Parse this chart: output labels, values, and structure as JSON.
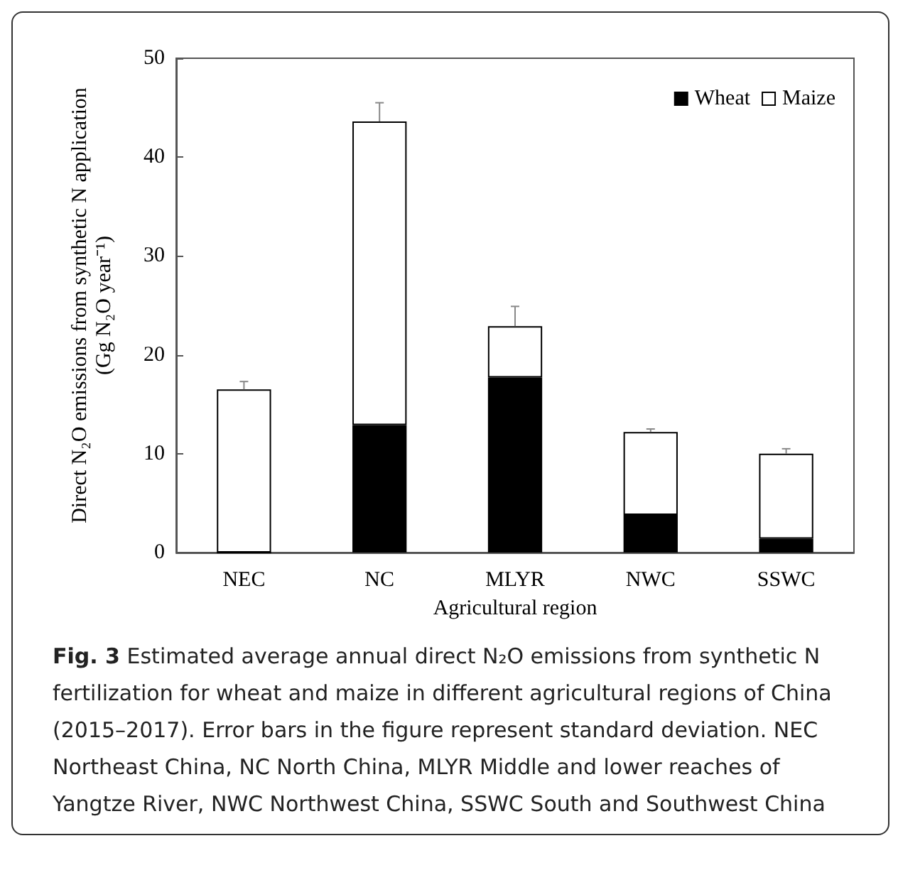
{
  "chart_data": {
    "type": "bar",
    "stacked": true,
    "categories": [
      "NEC",
      "NC",
      "MLYR",
      "NWC",
      "SSWC"
    ],
    "series": [
      {
        "name": "Wheat",
        "color": "#000000",
        "values": [
          0,
          12.9,
          17.7,
          3.8,
          1.4
        ]
      },
      {
        "name": "Maize",
        "color": "#ffffff",
        "values": [
          16.5,
          30.7,
          5.2,
          8.4,
          8.6
        ],
        "errors": [
          0.8,
          1.9,
          2.0,
          0.3,
          0.5
        ]
      }
    ],
    "ylim": [
      0,
      50
    ],
    "yticks": [
      0,
      10,
      20,
      30,
      40,
      50
    ],
    "grid": false,
    "legend": "top right",
    "xlabel": "Agricultural region",
    "ylabel": "Direct N₂O emissions from synthetic N application\n(Gg N₂O year⁻¹)",
    "title": "Fig. 3",
    "annotations": [
      "Estimated average annual direct N₂O emissions from synthetic N fertilization for wheat and maize in different agricultural regions of China (2015–2017). Error bars in the figure represent standard deviation. NEC Northeast China, NC North China, MLYR Middle and lower reaches of Yangtze River, NWC Northwest China, SSWC South and Southwest China"
    ]
  }
}
